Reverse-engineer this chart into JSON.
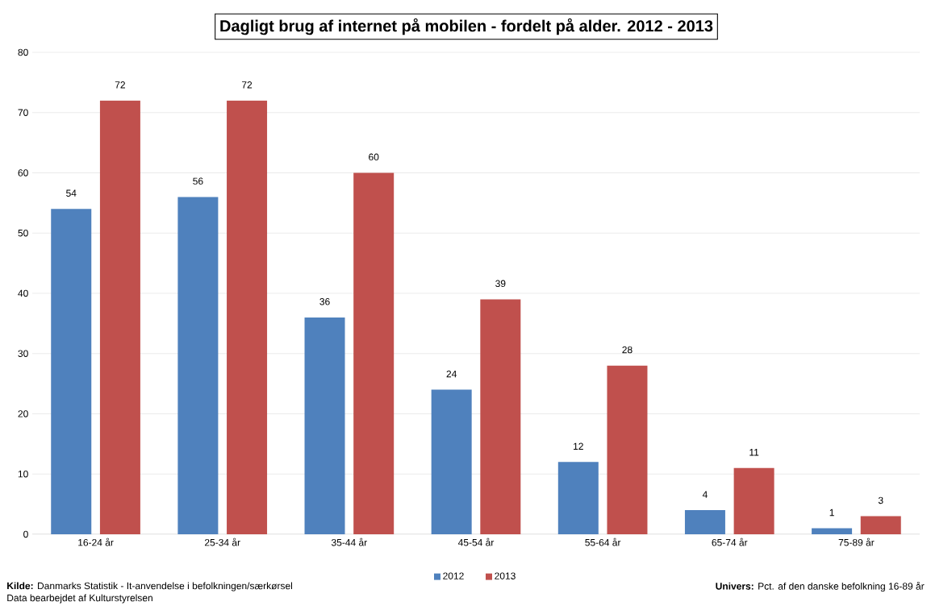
{
  "chart_data": {
    "type": "bar",
    "title": "Dagligt brug af internet på mobilen - fordelt på alder. 2012 - 2013",
    "categories": [
      "16-24 år",
      "25-34 år",
      "35-44 år",
      "45-54 år",
      "55-64 år",
      "65-74 år",
      "75-89 år"
    ],
    "series": [
      {
        "name": "2012",
        "color": "#4f81bd",
        "values": [
          54,
          56,
          36,
          24,
          12,
          4,
          1
        ]
      },
      {
        "name": "2013",
        "color": "#c0504d",
        "values": [
          72,
          72,
          60,
          39,
          28,
          11,
          3
        ]
      }
    ],
    "ylim": [
      0,
      80
    ],
    "yticks": [
      0,
      10,
      20,
      30,
      40,
      50,
      60,
      70,
      80
    ],
    "grid": "y",
    "legend": "bottom",
    "data_labels": true,
    "annotations": [
      "**Kilde:** Danmarks Statistik - It-anvendelse i befolkningen/særkørsel",
      "Data bearbejdet af Kulturstyrelsen",
      "**Univers:** Pct. af den danske befolkning 16-89 år"
    ]
  }
}
